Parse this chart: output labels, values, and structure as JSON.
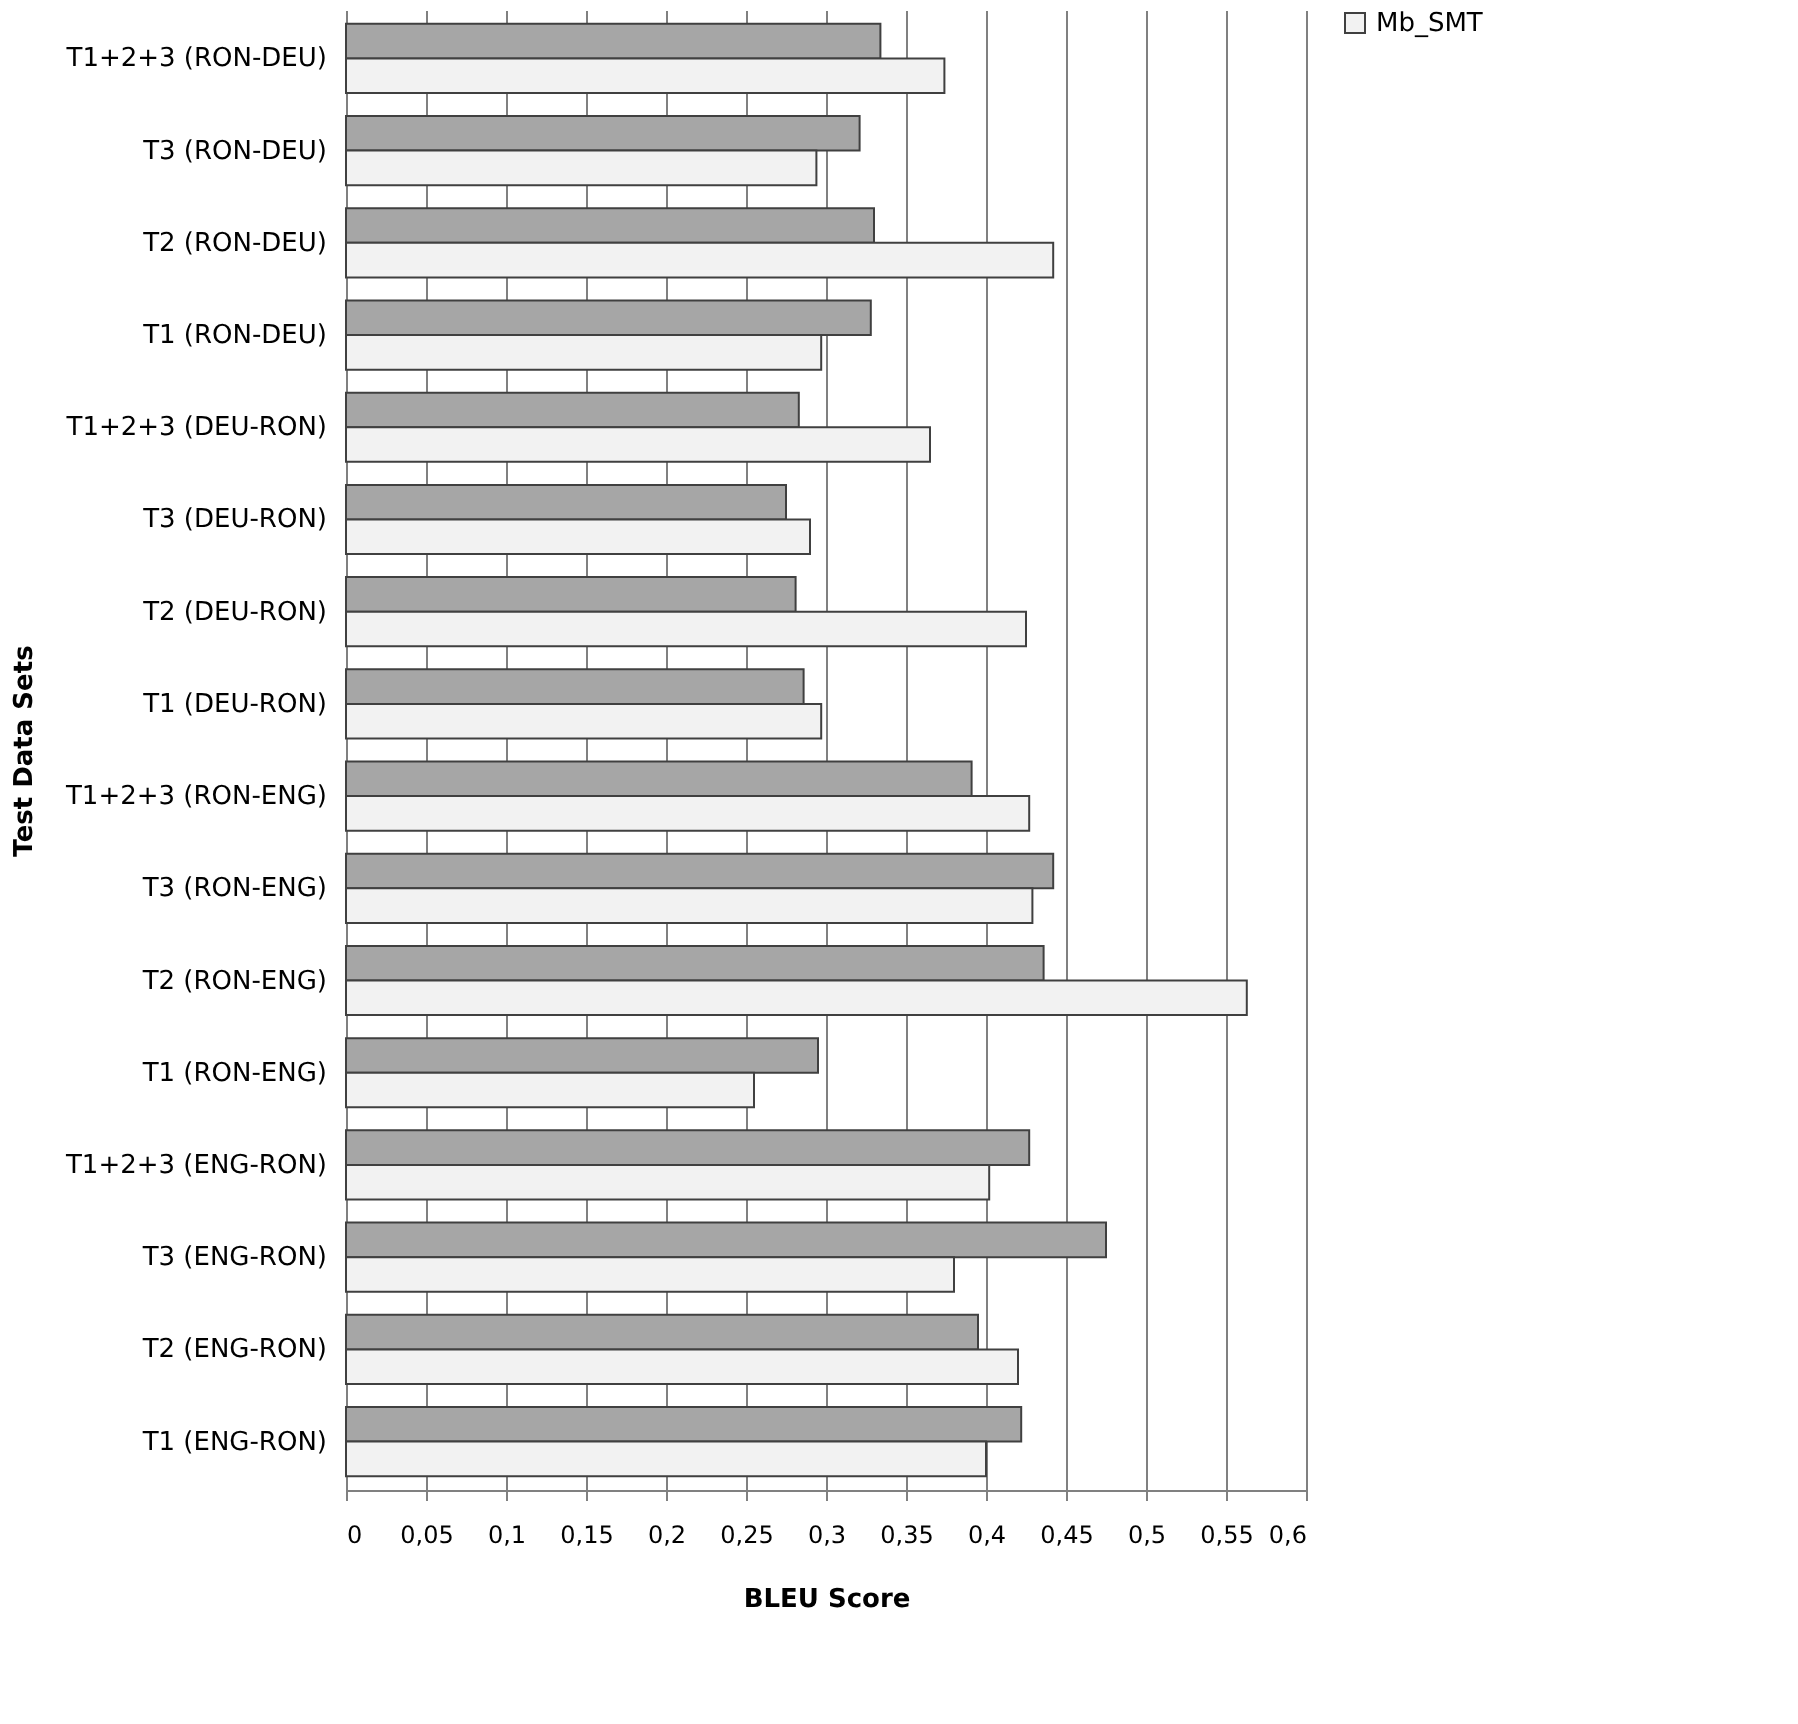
{
  "chart_data": {
    "type": "bar",
    "orientation": "horizontal",
    "xlabel": "BLEU Score",
    "ylabel": "Test Data Sets",
    "categories": [
      "T1+2+3 (RON-DEU)",
      "T3 (RON-DEU)",
      "T2 (RON-DEU)",
      "T1 (RON-DEU)",
      "T1+2+3 (DEU-RON)",
      "T3 (DEU-RON)",
      "T2 (DEU-RON)",
      "T1 (DEU-RON)",
      "T1+2+3 (RON-ENG)",
      "T3 (RON-ENG)",
      "T2 (RON-ENG)",
      "T1 (RON-ENG)",
      "T1+2+3 (ENG-RON)",
      "T3 (ENG-RON)",
      "T2 (ENG-RON)",
      "T1 (ENG-RON)"
    ],
    "series": [
      {
        "color": "#a6a6a6",
        "values": [
          0.334,
          0.321,
          0.33,
          0.328,
          0.283,
          0.275,
          0.281,
          0.286,
          0.391,
          0.442,
          0.436,
          0.295,
          0.427,
          0.475,
          0.395,
          0.422
        ]
      },
      {
        "name": "Mb_SMT",
        "color": "#f2f2f2",
        "values": [
          0.374,
          0.294,
          0.442,
          0.297,
          0.365,
          0.29,
          0.425,
          0.297,
          0.427,
          0.429,
          0.563,
          0.255,
          0.402,
          0.38,
          0.42,
          0.4
        ]
      }
    ],
    "xlim": [
      0,
      0.6
    ],
    "xticks": [
      0,
      {
        "value": 0.05,
        "label": "0,05"
      },
      {
        "value": 0.1,
        "label": "0,1"
      },
      {
        "value": 0.15,
        "label": "0,15"
      },
      {
        "value": 0.2,
        "label": "0,2"
      },
      {
        "value": 0.25,
        "label": "0,25"
      },
      {
        "value": 0.3,
        "label": "0,3"
      },
      {
        "value": 0.35,
        "label": "0,35"
      },
      {
        "value": 0.4,
        "label": "0,4"
      },
      {
        "value": 0.45,
        "label": "0,45"
      },
      {
        "value": 0.5,
        "label": "0,5"
      },
      {
        "value": 0.55,
        "label": "0,55"
      },
      {
        "value": 0.6,
        "label": "0,6"
      }
    ],
    "grid": "x",
    "legend": "right"
  }
}
